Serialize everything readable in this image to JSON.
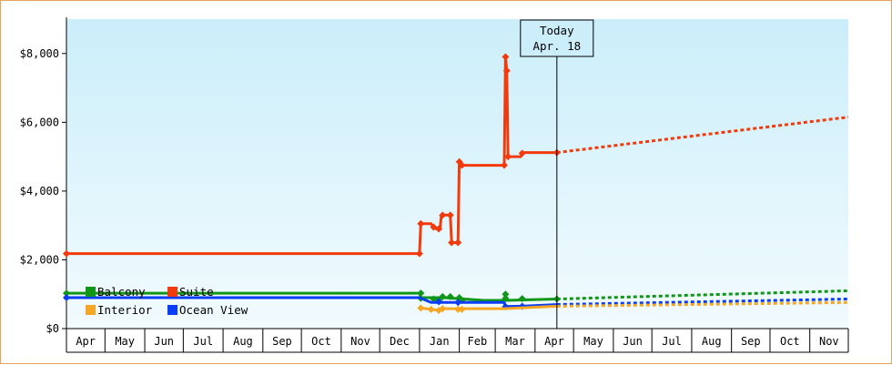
{
  "chart_data": {
    "type": "line",
    "title": "",
    "xlabel": "",
    "ylabel": "",
    "x_domain": [
      "2017-04-01",
      "2018-12-01"
    ],
    "ylim": [
      0,
      9000
    ],
    "y_ticks": [
      0,
      2000,
      4000,
      6000,
      8000
    ],
    "y_tick_labels": [
      "$0",
      "$2,000",
      "$4,000",
      "$6,000",
      "$8,000"
    ],
    "month_labels": [
      "Apr",
      "May",
      "Jun",
      "Jul",
      "Aug",
      "Sep",
      "Oct",
      "Nov",
      "Dec",
      "Jan",
      "Feb",
      "Mar",
      "Apr",
      "May",
      "Jun",
      "Jul",
      "Aug",
      "Sep",
      "Oct",
      "Nov"
    ],
    "grid": false,
    "background": "sky-blue gradient",
    "today": {
      "date": "2018-04-18",
      "label_line1": "Today",
      "label_line2": "Apr. 18"
    },
    "legend": {
      "placement": "bottom-left",
      "items": [
        {
          "label": "Balcony",
          "color": "#109618"
        },
        {
          "label": "Suite",
          "color": "#f23b0c"
        },
        {
          "label": "Interior",
          "color": "#f5a623"
        },
        {
          "label": "Ocean View",
          "color": "#0b3df5"
        }
      ]
    },
    "series": [
      {
        "name": "Suite",
        "color": "#f23b0c",
        "history": [
          [
            "2017-04-01",
            2180
          ],
          [
            "2018-01-01",
            2180
          ],
          [
            "2018-01-02",
            3050
          ],
          [
            "2018-01-10",
            3050
          ],
          [
            "2018-01-12",
            2950
          ],
          [
            "2018-01-14",
            2900
          ],
          [
            "2018-01-17",
            2900
          ],
          [
            "2018-01-18",
            3300
          ],
          [
            "2018-01-25",
            3300
          ],
          [
            "2018-01-26",
            2500
          ],
          [
            "2018-01-31",
            2500
          ],
          [
            "2018-02-01",
            4850
          ],
          [
            "2018-02-03",
            4750
          ],
          [
            "2018-03-08",
            4750
          ],
          [
            "2018-03-09",
            7900
          ],
          [
            "2018-03-10",
            7500
          ],
          [
            "2018-03-11",
            5000
          ],
          [
            "2018-03-21",
            5000
          ],
          [
            "2018-03-22",
            5120
          ],
          [
            "2018-04-18",
            5120
          ]
        ],
        "markers": [
          [
            "2017-04-01",
            2180
          ],
          [
            "2018-01-01",
            2180
          ],
          [
            "2018-01-02",
            3050
          ],
          [
            "2018-01-12",
            2950
          ],
          [
            "2018-01-16",
            2900
          ],
          [
            "2018-01-19",
            3300
          ],
          [
            "2018-01-25",
            3300
          ],
          [
            "2018-01-26",
            2500
          ],
          [
            "2018-01-31",
            2500
          ],
          [
            "2018-02-01",
            4850
          ],
          [
            "2018-02-03",
            4750
          ],
          [
            "2018-03-08",
            4750
          ],
          [
            "2018-03-09",
            7900
          ],
          [
            "2018-03-10",
            7500
          ],
          [
            "2018-03-11",
            5000
          ],
          [
            "2018-03-22",
            5100
          ],
          [
            "2018-04-18",
            5120
          ]
        ],
        "forecast": [
          [
            "2018-04-18",
            5120
          ],
          [
            "2018-12-01",
            6150
          ]
        ]
      },
      {
        "name": "Balcony",
        "color": "#109618",
        "history": [
          [
            "2017-04-01",
            1030
          ],
          [
            "2018-01-01",
            1030
          ],
          [
            "2018-01-02",
            900
          ],
          [
            "2018-01-20",
            900
          ],
          [
            "2018-02-20",
            820
          ],
          [
            "2018-03-10",
            820
          ],
          [
            "2018-04-18",
            860
          ]
        ],
        "markers": [
          [
            "2017-04-01",
            1030
          ],
          [
            "2018-01-02",
            1030
          ],
          [
            "2018-01-02",
            880
          ],
          [
            "2018-01-12",
            860
          ],
          [
            "2018-01-16",
            820
          ],
          [
            "2018-01-19",
            930
          ],
          [
            "2018-01-25",
            930
          ],
          [
            "2018-02-01",
            900
          ],
          [
            "2018-02-03",
            820
          ],
          [
            "2018-03-09",
            1000
          ],
          [
            "2018-03-09",
            880
          ],
          [
            "2018-03-22",
            870
          ],
          [
            "2018-04-18",
            860
          ]
        ],
        "forecast": [
          [
            "2018-04-18",
            860
          ],
          [
            "2018-12-01",
            1100
          ]
        ]
      },
      {
        "name": "Ocean View",
        "color": "#0b3df5",
        "history": [
          [
            "2017-04-01",
            900
          ],
          [
            "2018-01-01",
            900
          ],
          [
            "2018-01-10",
            760
          ],
          [
            "2018-03-08",
            760
          ],
          [
            "2018-03-09",
            640
          ],
          [
            "2018-03-22",
            650
          ],
          [
            "2018-04-18",
            700
          ]
        ],
        "markers": [
          [
            "2017-04-01",
            900
          ],
          [
            "2018-01-16",
            780
          ],
          [
            "2018-01-31",
            760
          ],
          [
            "2018-03-09",
            640
          ],
          [
            "2018-03-22",
            650
          ]
        ],
        "forecast": [
          [
            "2018-04-18",
            700
          ],
          [
            "2018-12-01",
            860
          ]
        ]
      },
      {
        "name": "Interior",
        "color": "#f5a623",
        "history": [
          [
            "2018-01-01",
            600
          ],
          [
            "2018-01-10",
            560
          ],
          [
            "2018-01-16",
            530
          ],
          [
            "2018-01-19",
            580
          ],
          [
            "2018-03-08",
            580
          ],
          [
            "2018-04-18",
            650
          ]
        ],
        "markers": [
          [
            "2018-01-02",
            600
          ],
          [
            "2018-01-10",
            560
          ],
          [
            "2018-01-16",
            530
          ],
          [
            "2018-01-19",
            580
          ],
          [
            "2018-01-31",
            560
          ],
          [
            "2018-02-03",
            560
          ]
        ],
        "forecast": [
          [
            "2018-04-18",
            650
          ],
          [
            "2018-12-01",
            760
          ]
        ]
      }
    ]
  }
}
